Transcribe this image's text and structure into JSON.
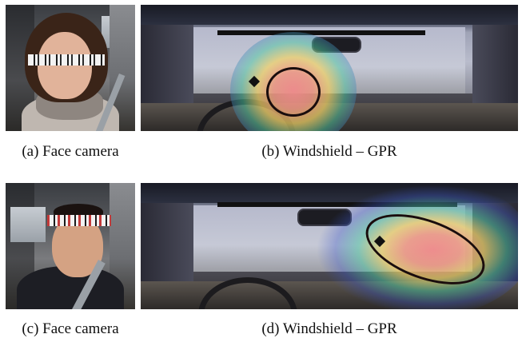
{
  "panels": [
    {
      "id": "a",
      "caption": "(a)  Face camera"
    },
    {
      "id": "b",
      "caption": "(b)  Windshield – GPR"
    },
    {
      "id": "c",
      "caption": "(c)  Face camera"
    },
    {
      "id": "d",
      "caption": "(d)  Windshield – GPR"
    }
  ],
  "colors": {
    "heat_center": "#f08a8a",
    "heat_mid": "#f2d264",
    "heat_outer": "#4ac7a0",
    "heat_edge": "#3a56c8",
    "gaze_marker": "#111111"
  }
}
